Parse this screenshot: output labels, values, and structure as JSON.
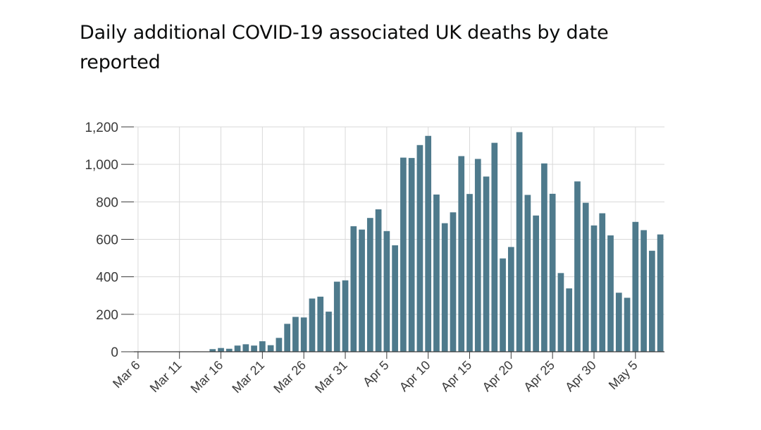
{
  "chart_data": {
    "type": "bar",
    "title": "Daily additional COVID-19 associated UK deaths by date reported",
    "xlabel": "",
    "ylabel": "",
    "ylim": [
      0,
      1200
    ],
    "y_ticks": [
      0,
      200,
      400,
      600,
      800,
      1000,
      1200
    ],
    "y_tick_labels": [
      "0",
      "200",
      "400",
      "600",
      "800",
      "1,000",
      "1,200"
    ],
    "categories": [
      "Mar 6",
      "Mar 7",
      "Mar 8",
      "Mar 9",
      "Mar 10",
      "Mar 11",
      "Mar 12",
      "Mar 13",
      "Mar 14",
      "Mar 15",
      "Mar 16",
      "Mar 17",
      "Mar 18",
      "Mar 19",
      "Mar 20",
      "Mar 21",
      "Mar 22",
      "Mar 23",
      "Mar 24",
      "Mar 25",
      "Mar 26",
      "Mar 27",
      "Mar 28",
      "Mar 29",
      "Mar 30",
      "Mar 31",
      "Apr 1",
      "Apr 2",
      "Apr 3",
      "Apr 4",
      "Apr 5",
      "Apr 6",
      "Apr 7",
      "Apr 8",
      "Apr 9",
      "Apr 10",
      "Apr 11",
      "Apr 12",
      "Apr 13",
      "Apr 14",
      "Apr 15",
      "Apr 16",
      "Apr 17",
      "Apr 18",
      "Apr 19",
      "Apr 20",
      "Apr 21",
      "Apr 22",
      "Apr 23",
      "Apr 24",
      "Apr 25",
      "Apr 26",
      "Apr 27",
      "Apr 28",
      "Apr 29",
      "Apr 30",
      "May 1",
      "May 2",
      "May 3",
      "May 4",
      "May 5",
      "May 6",
      "May 7",
      "May 8"
    ],
    "values": [
      1,
      0,
      1,
      1,
      1,
      2,
      1,
      2,
      0,
      14,
      20,
      16,
      33,
      40,
      33,
      56,
      35,
      74,
      149,
      186,
      183,
      284,
      294,
      214,
      374,
      381,
      670,
      652,
      714,
      760,
      644,
      568,
      1036,
      1034,
      1103,
      1152,
      839,
      686,
      744,
      1044,
      842,
      1029,
      935,
      1115,
      498,
      559,
      1172,
      837,
      727,
      1005,
      843,
      420,
      338,
      909,
      795,
      674,
      739,
      621,
      315,
      288,
      693,
      649,
      539,
      626
    ],
    "x_tick_labels": [
      "Mar 6",
      "Mar 11",
      "Mar 16",
      "Mar 21",
      "Mar 26",
      "Mar 31",
      "Apr 5",
      "Apr 10",
      "Apr 15",
      "Apr 20",
      "Apr 25",
      "Apr 30",
      "May 5"
    ],
    "x_tick_every": 5,
    "grid": true,
    "bar_color": "#4e7a8c",
    "grid_color": "#d9d9d9",
    "axis_color": "#3a3a3a"
  }
}
